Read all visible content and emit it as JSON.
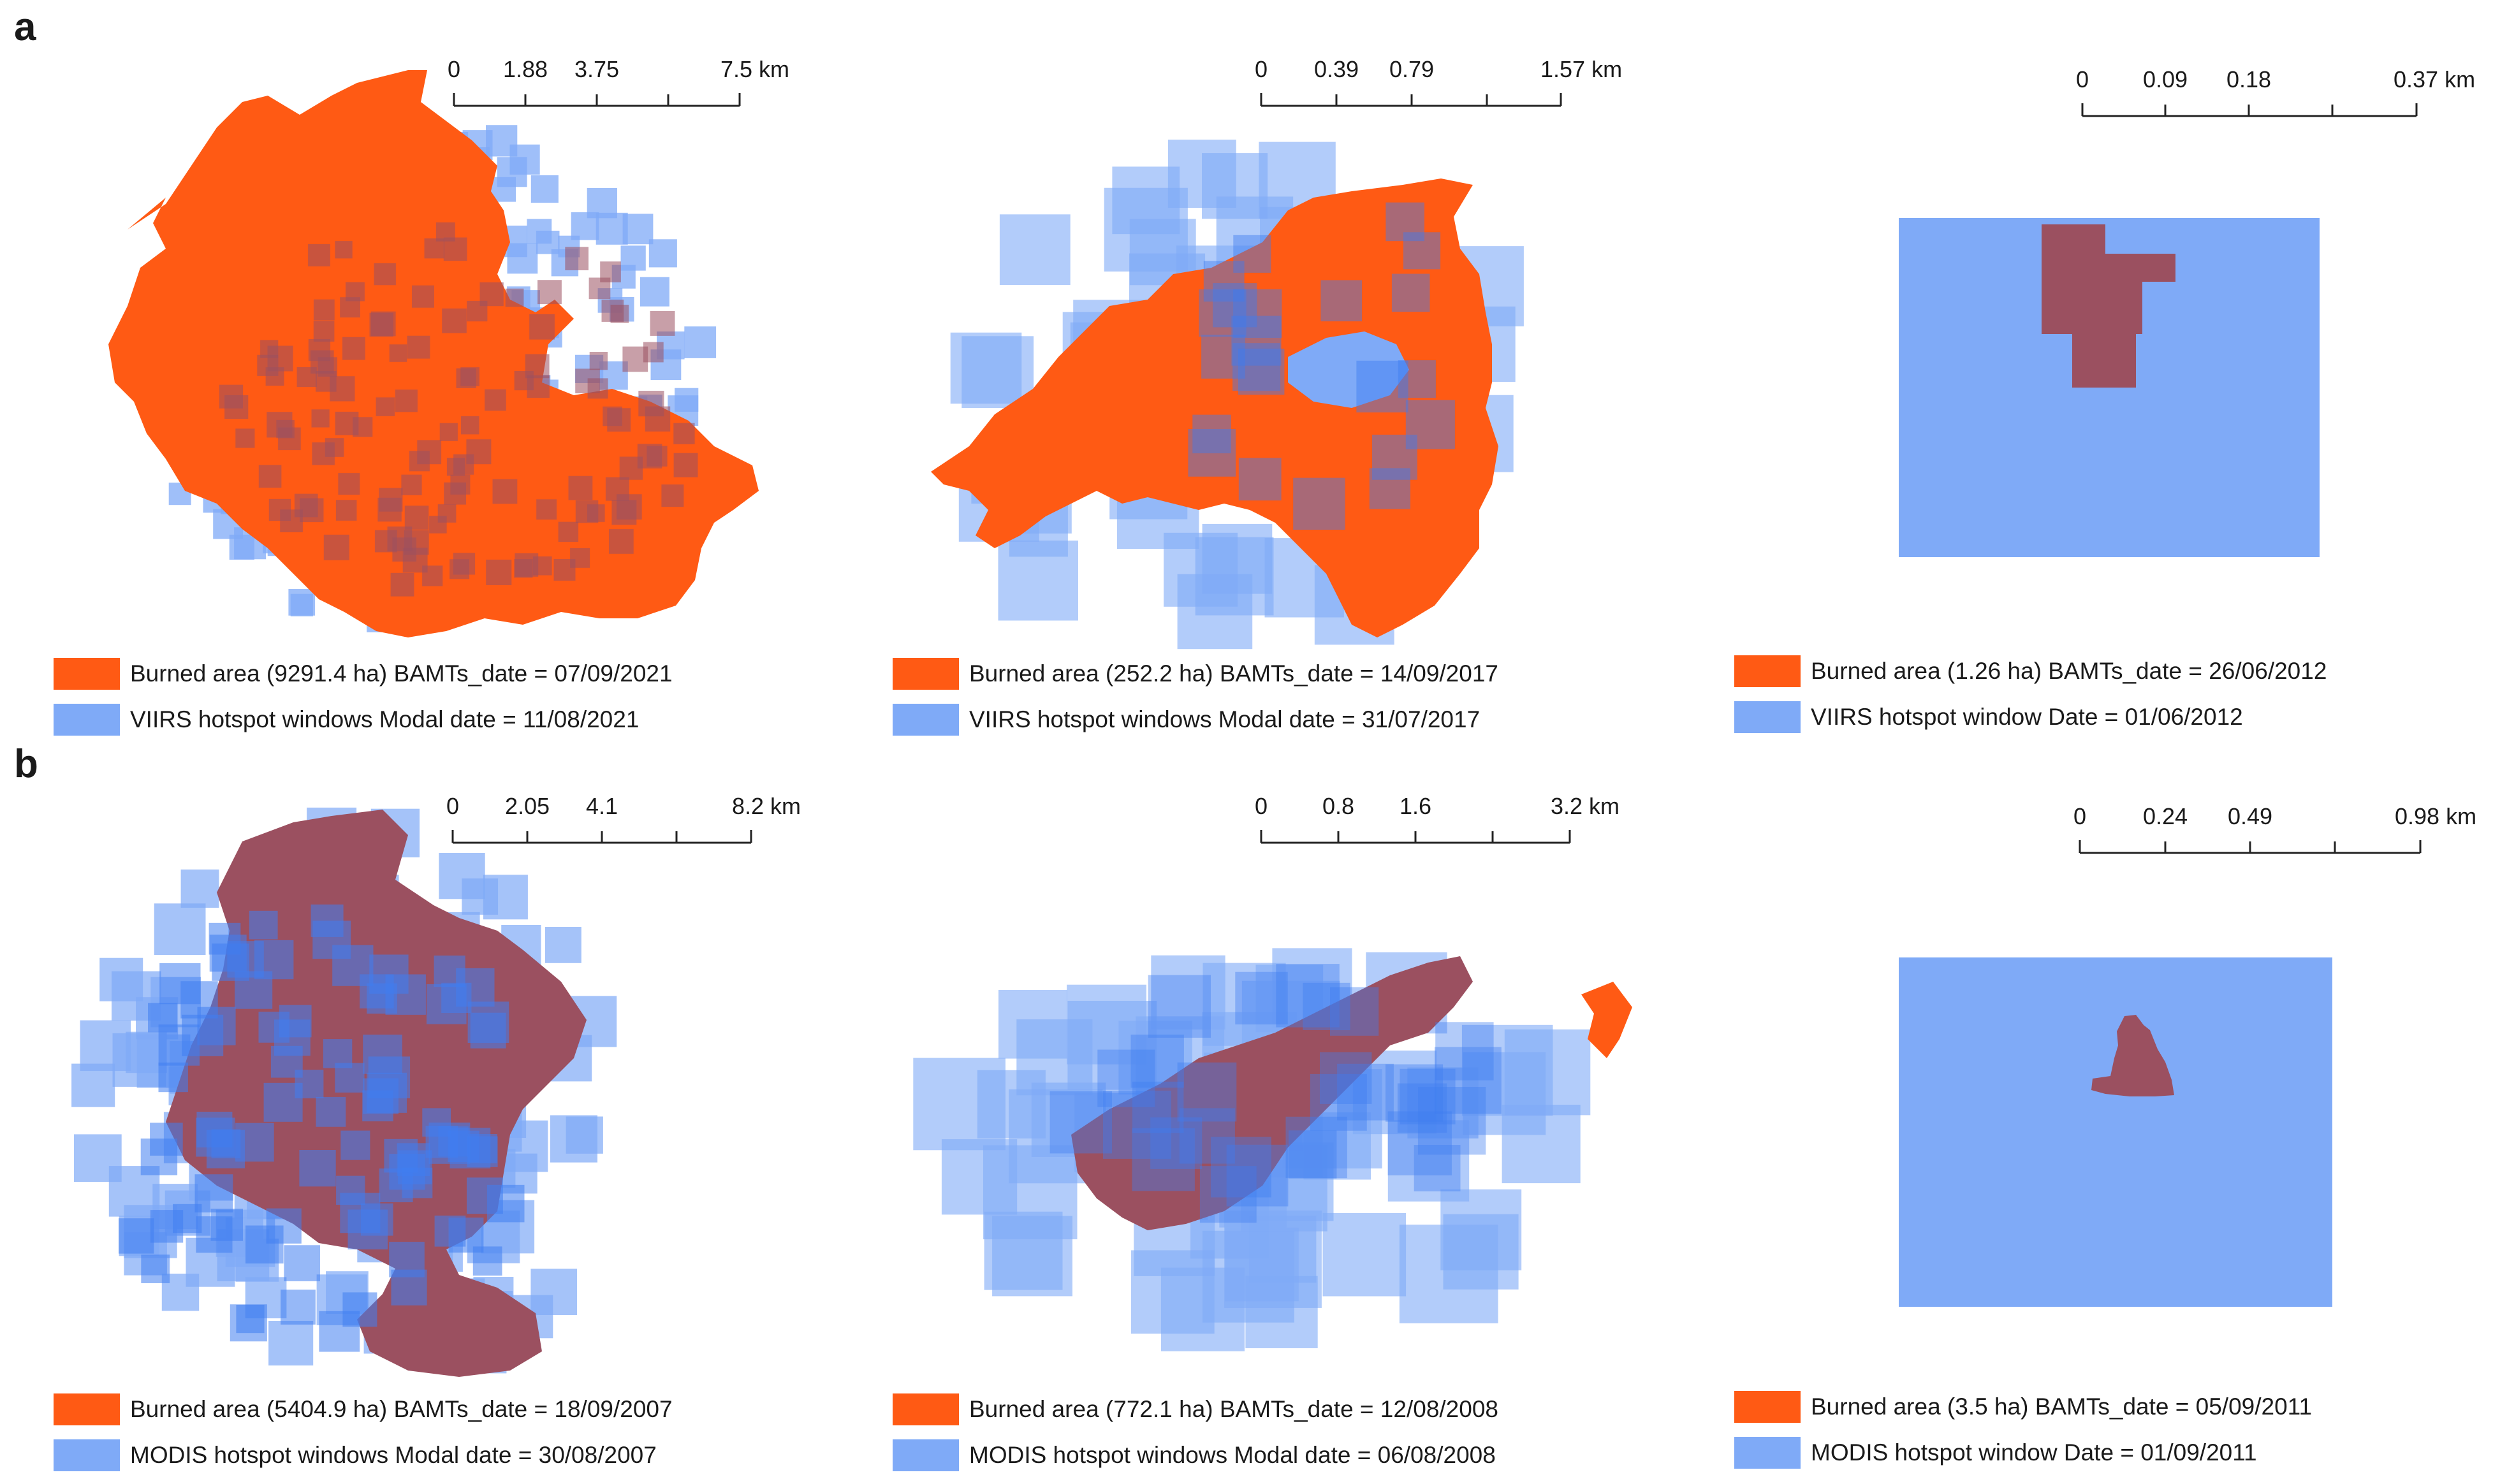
{
  "colors": {
    "burned": "#ff5a14",
    "burned_overlap": "#9b5060",
    "hotspot": "#7faaf7",
    "hotspot_dense": "#3f7df0"
  },
  "rows": [
    {
      "label": "a",
      "panels": [
        {
          "scale": {
            "ticks": [
              "0",
              "1.88",
              "3.75",
              "7.5 km"
            ]
          },
          "legend": {
            "burned": "Burned area (9291.4 ha)  BAMTs_date = 07/09/2021",
            "hotspot": "VIIRS hotspot windows Modal date = 11/08/2021"
          }
        },
        {
          "scale": {
            "ticks": [
              "0",
              "0.39",
              "0.79",
              "1.57 km"
            ]
          },
          "legend": {
            "burned": "Burned area (252.2 ha)  BAMTs_date = 14/09/2017",
            "hotspot": "VIIRS hotspot windows Modal date = 31/07/2017"
          }
        },
        {
          "scale": {
            "ticks": [
              "0",
              "0.09",
              "0.18",
              "0.37 km"
            ]
          },
          "legend": {
            "burned": "Burned area (1.26 ha)  BAMTs_date = 26/06/2012",
            "hotspot": "VIIRS hotspot window Date = 01/06/2012"
          }
        }
      ]
    },
    {
      "label": "b",
      "panels": [
        {
          "scale": {
            "ticks": [
              "0",
              "2.05",
              "4.1",
              "8.2 km"
            ]
          },
          "legend": {
            "burned": "Burned area (5404.9 ha)  BAMTs_date = 18/09/2007",
            "hotspot": "MODIS hotspot windows Modal date = 30/08/2007"
          }
        },
        {
          "scale": {
            "ticks": [
              "0",
              "0.8",
              "1.6",
              "3.2 km"
            ]
          },
          "legend": {
            "burned": "Burned area (772.1 ha)  BAMTs_date = 12/08/2008",
            "hotspot": "MODIS hotspot windows Modal date = 06/08/2008"
          }
        },
        {
          "scale": {
            "ticks": [
              "0",
              "0.24",
              "0.49",
              "0.98 km"
            ]
          },
          "legend": {
            "burned": "Burned area (3.5 ha)  BAMTs_date = 05/09/2011",
            "hotspot": "MODIS hotspot window Date = 01/09/2011"
          }
        }
      ]
    }
  ]
}
